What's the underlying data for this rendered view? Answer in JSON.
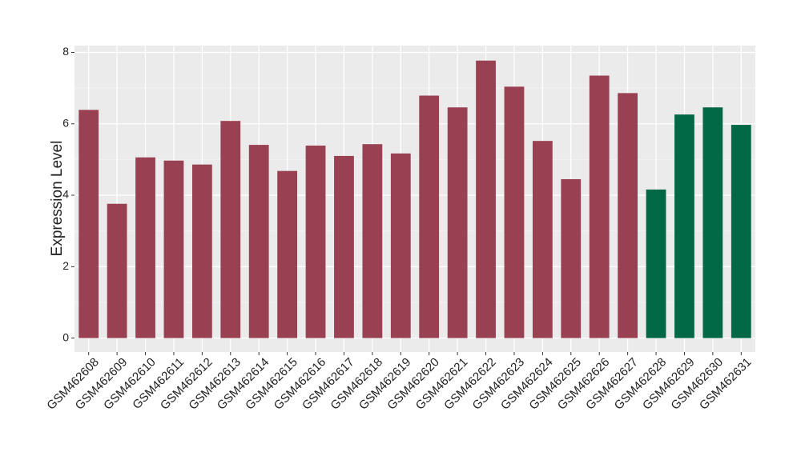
{
  "chart_data": {
    "type": "bar",
    "y_label": "Expression Level",
    "categories": [
      "GSM462608",
      "GSM462609",
      "GSM462610",
      "GSM462611",
      "GSM462612",
      "GSM462613",
      "GSM462614",
      "GSM462615",
      "GSM462616",
      "GSM462617",
      "GSM462618",
      "GSM462619",
      "GSM462620",
      "GSM462621",
      "GSM462622",
      "GSM462623",
      "GSM462624",
      "GSM462625",
      "GSM462626",
      "GSM462627",
      "GSM462628",
      "GSM462629",
      "GSM462630",
      "GSM462631"
    ],
    "values": [
      6.39,
      3.76,
      5.06,
      4.97,
      4.86,
      6.08,
      5.41,
      4.68,
      5.39,
      5.1,
      5.43,
      5.17,
      6.79,
      6.46,
      7.77,
      7.04,
      5.52,
      4.45,
      7.35,
      6.86,
      4.16,
      6.26,
      6.46,
      5.97
    ],
    "colors": [
      "#994152",
      "#994152",
      "#994152",
      "#994152",
      "#994152",
      "#994152",
      "#994152",
      "#994152",
      "#994152",
      "#994152",
      "#994152",
      "#994152",
      "#994152",
      "#994152",
      "#994152",
      "#994152",
      "#994152",
      "#994152",
      "#994152",
      "#994152",
      "#006845",
      "#006845",
      "#006845",
      "#006845"
    ],
    "ylim": [
      -0.39,
      8.19
    ],
    "yticks": [
      0,
      2,
      4,
      6,
      8
    ],
    "minor_yticks": [
      1,
      3,
      5,
      7
    ],
    "grid": true
  }
}
